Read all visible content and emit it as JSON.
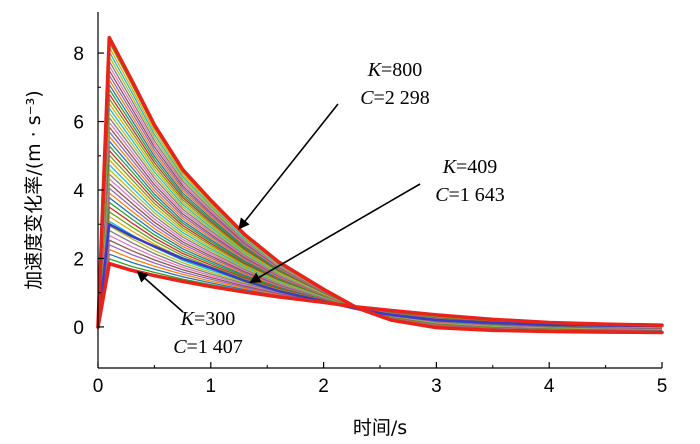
{
  "chart_data": {
    "type": "line",
    "xlabel": "时间/s",
    "ylabel": "加速度变化率/(m · s⁻³)",
    "xlim": [
      0,
      5
    ],
    "ylim": [
      -1.2,
      9.2
    ],
    "xticks": [
      "0",
      "1",
      "2",
      "3",
      "4",
      "5"
    ],
    "yticks": [
      "0",
      "2",
      "4",
      "6",
      "8"
    ],
    "grid": false,
    "legend": "none",
    "fan_curve_count": 48,
    "fan_colors": [
      "#d62728",
      "#2ca02c",
      "#1f77b4",
      "#ff7f0e",
      "#9467bd",
      "#8c564b",
      "#e377c2",
      "#7f7f7f",
      "#bcbd22",
      "#17becf",
      "#e6ab02",
      "#66a61e"
    ],
    "series": [
      {
        "K": 800,
        "C": 2298,
        "color": "#e8231a",
        "x": [
          0,
          0.1,
          0.3,
          0.5,
          0.75,
          1.0,
          1.3,
          1.6,
          2.0,
          2.3,
          2.6,
          3.0,
          3.5,
          4.0,
          4.5,
          5.0
        ],
        "y": [
          0,
          8.45,
          7.2,
          5.9,
          4.6,
          3.7,
          2.7,
          1.9,
          1.1,
          0.55,
          0.2,
          -0.02,
          -0.1,
          -0.13,
          -0.15,
          -0.16
        ]
      },
      {
        "K": 409,
        "C": 1643,
        "color": "#3b3bc4",
        "x": [
          0,
          0.1,
          0.3,
          0.5,
          0.75,
          1.0,
          1.3,
          1.6,
          2.0,
          2.3,
          2.6,
          3.0,
          3.5,
          4.0,
          4.5,
          5.0
        ],
        "y": [
          0,
          3.0,
          2.65,
          2.35,
          2.0,
          1.72,
          1.35,
          1.05,
          0.75,
          0.52,
          0.35,
          0.2,
          0.12,
          0.06,
          0.04,
          0.03
        ]
      },
      {
        "K": 300,
        "C": 1407,
        "color": "#e8231a",
        "x": [
          0,
          0.1,
          0.3,
          0.5,
          0.75,
          1.0,
          1.3,
          1.6,
          2.0,
          2.3,
          2.6,
          3.0,
          3.5,
          4.0,
          4.5,
          5.0
        ],
        "y": [
          0,
          1.85,
          1.65,
          1.5,
          1.33,
          1.18,
          1.02,
          0.88,
          0.72,
          0.58,
          0.48,
          0.35,
          0.22,
          0.13,
          0.08,
          0.05
        ]
      }
    ],
    "annotations": [
      {
        "k_label": "K",
        "k_value": "=800",
        "c_label": "C",
        "c_value": "=2 298",
        "target_series": 0,
        "target_x": 1.25
      },
      {
        "k_label": "K",
        "k_value": "=409",
        "c_label": "C",
        "c_value": "=1 643",
        "target_series": 1,
        "target_x": 1.35
      },
      {
        "k_label": "K",
        "k_value": "=300",
        "c_label": "C",
        "c_value": "=1 407",
        "target_series": 2,
        "target_x": 0.35
      }
    ]
  }
}
